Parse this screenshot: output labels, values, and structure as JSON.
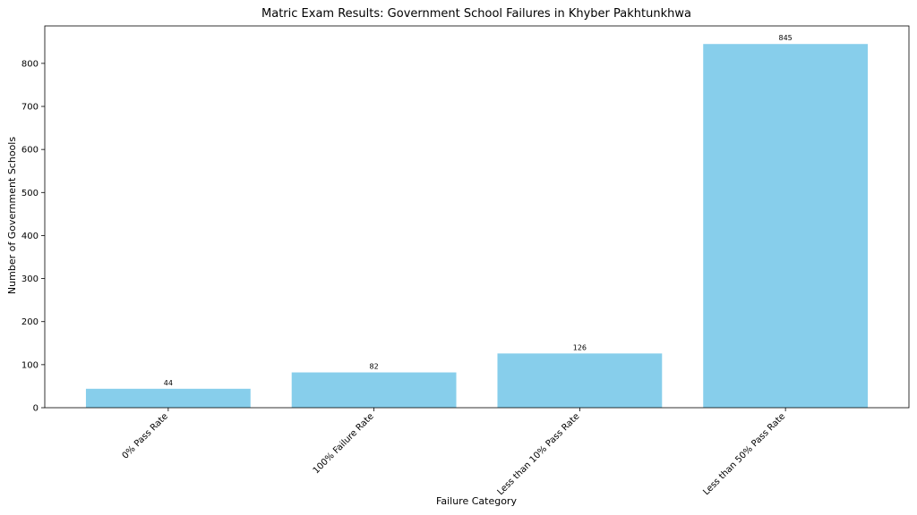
{
  "chart_data": {
    "type": "bar",
    "title": "Matric Exam Results: Government School Failures in Khyber Pakhtunkhwa",
    "xlabel": "Failure Category",
    "ylabel": "Number of Government Schools",
    "categories": [
      "0% Pass Rate",
      "100% Failure Rate",
      "Less than 10% Pass Rate",
      "Less than 50% Pass Rate"
    ],
    "values": [
      44,
      82,
      126,
      845
    ],
    "ylim": [
      0,
      887
    ],
    "yticks": [
      0,
      100,
      200,
      300,
      400,
      500,
      600,
      700,
      800
    ],
    "bar_color": "#87ceeb",
    "grid": false
  }
}
